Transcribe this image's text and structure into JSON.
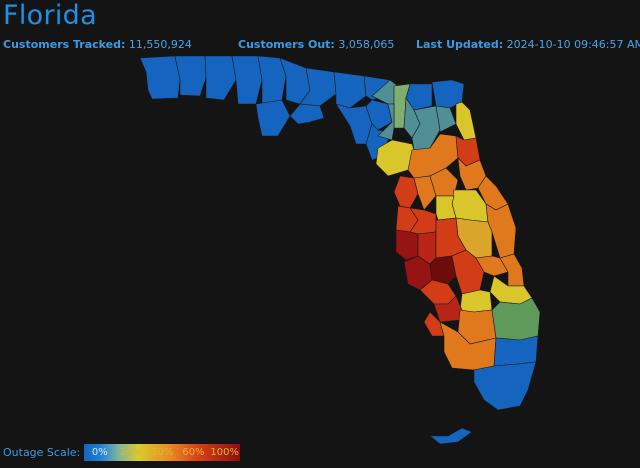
{
  "title": "Florida",
  "stats": {
    "tracked_label": "Customers Tracked:",
    "tracked_value": "11,550,924",
    "out_label": "Customers Out:",
    "out_value": "3,058,065",
    "updated_label": "Last Updated:",
    "updated_value": "2024-10-10 09:46:57 AM"
  },
  "scale": {
    "label": "Outage Scale:",
    "ticks": [
      "0%",
      "10%",
      "30%",
      "60%",
      "100%"
    ]
  },
  "colors": {
    "low": "#1565c0",
    "teal": "#4f8f95",
    "green": "#5f9a5a",
    "yellow": "#d9c62a",
    "orange": "#e0781e",
    "red": "#d23c17",
    "darkred": "#961414",
    "darkest": "#6e0c0c"
  }
}
